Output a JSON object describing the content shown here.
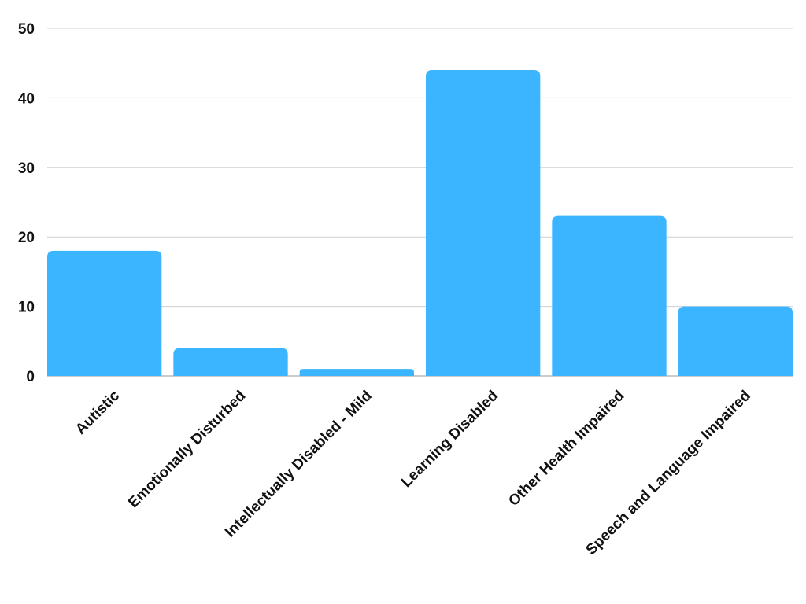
{
  "chart_data": {
    "type": "bar",
    "title": "",
    "xlabel": "",
    "ylabel": "",
    "categories": [
      "Autistic",
      "Emotionally Disturbed",
      "Intellectually Disabled - Mild",
      "Learning Disabled",
      "Other Health Impaired",
      "Speech and Language Impaired"
    ],
    "values": [
      18,
      4,
      1,
      44,
      23,
      10
    ],
    "ylim": [
      0,
      50
    ],
    "yticks": [
      0,
      10,
      20,
      30,
      40,
      50
    ],
    "grid": true,
    "legend": "none",
    "colors": {
      "bar": "#3bb5ff",
      "grid": "#cfcfcf",
      "text": "#111111"
    }
  }
}
